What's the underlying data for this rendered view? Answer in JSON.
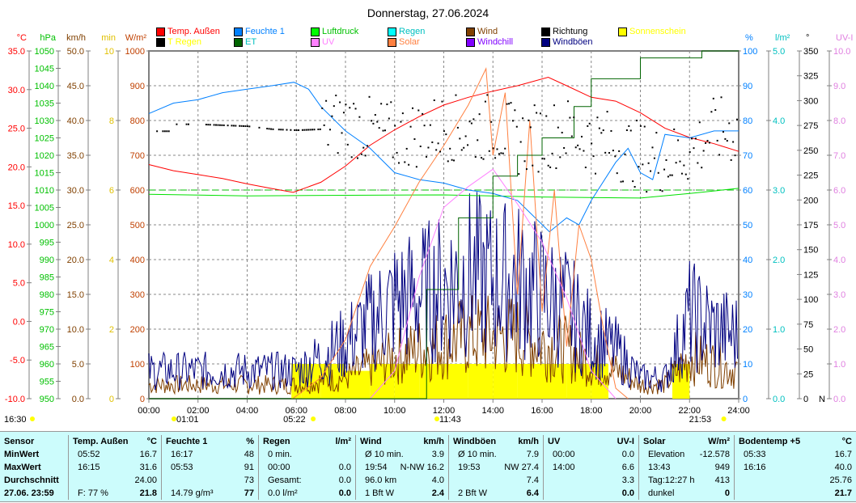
{
  "title": "Donnerstag, 27.06.2024",
  "legend": [
    {
      "label": "Temp. Außen",
      "color": "#ff0000"
    },
    {
      "label": "Feuchte 1",
      "color": "#0080ff"
    },
    {
      "label": "Luftdruck",
      "color": "#00ff00"
    },
    {
      "label": "Regen",
      "color": "#00ffff"
    },
    {
      "label": "Wind",
      "color": "#804000"
    },
    {
      "label": "Richtung",
      "color": "#000000"
    },
    {
      "label": "Sonnenschein",
      "color": "#ffff00"
    },
    {
      "label": "T Regen",
      "color": "#000000"
    },
    {
      "label": "ET",
      "color": "#006400"
    },
    {
      "label": "UV",
      "color": "#ff80ff"
    },
    {
      "label": "Solar",
      "color": "#ff8040"
    },
    {
      "label": "Windchill",
      "color": "#8000ff"
    },
    {
      "label": "Windböen",
      "color": "#000080"
    }
  ],
  "legend_text_colors": [
    "#ff0000",
    "#0080ff",
    "#00c000",
    "#00c0c0",
    "#804000",
    "#000000",
    "#ffff00",
    "#ffff00",
    "#00c0c0",
    "#ff80ff",
    "#ff8040",
    "#8000ff",
    "#000080"
  ],
  "chart_data": {
    "type": "line",
    "title": "Donnerstag, 27.06.2024",
    "x_ticks": [
      "00:00",
      "02:00",
      "04:00",
      "06:00",
      "08:00",
      "10:00",
      "12:00",
      "14:00",
      "16:00",
      "18:00",
      "20:00",
      "22:00",
      "24:00"
    ],
    "axes": [
      {
        "unit": "°C",
        "min": -10,
        "max": 35,
        "step": 5,
        "dec": 1,
        "color": "#ff0000",
        "side": "left"
      },
      {
        "unit": "hPa",
        "min": 950,
        "max": 1050,
        "step": 5,
        "dec": 0,
        "color": "#00c000",
        "side": "left"
      },
      {
        "unit": "km/h",
        "min": 0,
        "max": 50,
        "step": 5,
        "dec": 1,
        "color": "#804000",
        "side": "left"
      },
      {
        "unit": "min",
        "min": 0,
        "max": 10,
        "step": 2,
        "dec": 0,
        "color": "#e0c000",
        "side": "left"
      },
      {
        "unit": "W/m²",
        "min": 0,
        "max": 1000,
        "step": 100,
        "dec": 0,
        "color": "#c04000",
        "side": "left"
      },
      {
        "unit": "%",
        "min": 0,
        "max": 100,
        "step": 10,
        "dec": 0,
        "color": "#0080ff",
        "side": "right"
      },
      {
        "unit": "l/m²",
        "min": 0,
        "max": 5,
        "step": 1,
        "dec": 1,
        "color": "#00c0c0",
        "side": "right"
      },
      {
        "unit": "°",
        "min": 0,
        "max": 350,
        "step": 25,
        "dec": 0,
        "color": "#000000",
        "side": "right"
      },
      {
        "unit": "UV-I",
        "min": 0,
        "max": 10,
        "step": 1,
        "dec": 1,
        "color": "#e080e0",
        "side": "right"
      }
    ],
    "series": [
      {
        "name": "Temp. Außen",
        "axis": 0,
        "color": "#ff0000",
        "x": [
          0,
          1,
          2,
          3,
          4,
          5,
          5.87,
          7,
          8,
          9,
          10,
          11,
          12,
          13,
          14,
          15,
          16.25,
          17,
          18,
          19,
          20,
          21,
          22,
          23,
          24
        ],
        "y": [
          20.3,
          19.5,
          19,
          18.5,
          17.8,
          17.2,
          16.7,
          18,
          20.1,
          22.8,
          24.8,
          26.5,
          28,
          29,
          29.8,
          30.5,
          31.6,
          30.5,
          29,
          28.5,
          27,
          25,
          23.8,
          23,
          22
        ]
      },
      {
        "name": "Feuchte 1",
        "axis": 5,
        "color": "#0080ff",
        "x": [
          0,
          1,
          2,
          3,
          4,
          5,
          5.9,
          6.5,
          7,
          8,
          9,
          10,
          11,
          12,
          13,
          14,
          15,
          16.3,
          17,
          17.5,
          18,
          19,
          19.5,
          20,
          20.5,
          21,
          22,
          23,
          24
        ],
        "y": [
          82,
          85,
          86,
          88,
          89,
          90,
          91,
          89,
          84,
          77,
          72,
          65,
          63,
          62,
          60,
          59,
          57,
          48,
          52,
          50,
          57,
          68,
          72,
          65,
          63,
          76,
          75,
          77,
          77
        ]
      },
      {
        "name": "Luftdruck",
        "axis": 1,
        "color": "#00e000",
        "x": [
          0,
          4,
          8,
          12,
          16,
          20,
          22,
          24
        ],
        "y": [
          1008.8,
          1008.3,
          1008.5,
          1008.6,
          1008,
          1007.7,
          1009,
          1010.5
        ]
      },
      {
        "name": "Solar",
        "axis": 4,
        "color": "#ff8040",
        "x": [
          5.85,
          7,
          8,
          9,
          10,
          11,
          12,
          13,
          13.72,
          14,
          14.5,
          15,
          15.5,
          16,
          16.5,
          17,
          17.5,
          18,
          18.5,
          19,
          19.5
        ],
        "y": [
          0,
          60,
          170,
          380,
          495,
          623,
          728,
          845,
          949,
          700,
          880,
          300,
          800,
          250,
          600,
          150,
          500,
          400,
          200,
          30,
          0
        ]
      },
      {
        "name": "UV",
        "axis": 8,
        "color": "#ff80ff",
        "x": [
          9,
          10,
          11,
          12,
          13,
          14,
          15,
          16,
          17,
          18,
          19
        ],
        "y": [
          0,
          0.8,
          3.5,
          5.5,
          6.1,
          6.6,
          5.6,
          4.5,
          2.9,
          0.8,
          0
        ]
      },
      {
        "name": "ET",
        "axis": 6,
        "color": "#006400",
        "step": true,
        "x": [
          0,
          11.3,
          12.6,
          14,
          15,
          16,
          17.3,
          18,
          20,
          22.5,
          24
        ],
        "y": [
          0,
          1.57,
          2.6,
          3.2,
          3.5,
          3.75,
          4.2,
          4.6,
          4.9,
          5,
          5
        ]
      },
      {
        "name": "Sonnenschein",
        "axis": 3,
        "color": "#ffff00",
        "bars": true,
        "x": [
          5.8,
          6.2,
          7,
          8,
          9,
          10,
          11,
          12,
          13,
          14,
          15,
          16,
          17,
          18,
          18.7,
          21.3
        ],
        "y": [
          1,
          1,
          1,
          0.8,
          1,
          1,
          1,
          1,
          1,
          1,
          1,
          1,
          1,
          1,
          0,
          1
        ]
      },
      {
        "name": "Wind",
        "axis": 2,
        "color": "#804000",
        "noisy": true,
        "x": [
          0,
          2,
          4,
          6,
          8,
          10,
          12,
          13,
          14,
          15,
          16,
          17,
          18,
          19,
          20,
          21,
          22,
          23,
          24
        ],
        "y": [
          2,
          2,
          2,
          2,
          3,
          6,
          8,
          9,
          9,
          9,
          8,
          7,
          5,
          4,
          2,
          2,
          6,
          5,
          4
        ]
      },
      {
        "name": "Windböen",
        "axis": 2,
        "color": "#000080",
        "noisy": true,
        "x": [
          0,
          2,
          4,
          6,
          8,
          10,
          12,
          13,
          14,
          15,
          16,
          17,
          18,
          19,
          20,
          21,
          22,
          23,
          24
        ],
        "y": [
          4,
          4,
          4,
          4,
          8,
          14,
          16,
          18,
          17,
          17,
          15,
          13,
          9,
          7,
          3,
          3,
          12,
          10,
          9
        ]
      },
      {
        "name": "Richtung",
        "axis": 7,
        "color": "#000000",
        "dots": true,
        "x": [
          1,
          2,
          3,
          4,
          5,
          6,
          7,
          8,
          9,
          10,
          11,
          12,
          13,
          14,
          15,
          16,
          17,
          18,
          19,
          20,
          21,
          22,
          23
        ],
        "y": [
          277,
          277,
          276,
          275,
          272,
          271,
          272,
          280,
          270,
          265,
          268,
          275,
          270,
          275,
          260,
          265,
          270,
          262,
          255,
          245,
          240,
          250,
          270
        ]
      }
    ],
    "reference_line": {
      "axis": 0,
      "value": 17,
      "color": "#00c000"
    }
  },
  "time_markers": [
    {
      "label": "16:30",
      "x": -2
    },
    {
      "label": "01:01",
      "x": 1.02
    },
    {
      "label": "05:22",
      "x": 5.37
    },
    {
      "label": "11:43",
      "x": 11.72
    },
    {
      "label": "21:53",
      "x": 21.88
    }
  ],
  "dir_bottom_label": "N",
  "table": [
    {
      "head": [
        "Sensor",
        ""
      ],
      "rows": [
        [
          "MinWert",
          ""
        ],
        [
          "MaxWert",
          ""
        ],
        [
          "Durchschnitt",
          ""
        ],
        [
          "27.06. 23:59",
          ""
        ]
      ],
      "bold": true
    },
    {
      "head": [
        "Temp. Außen",
        "°C"
      ],
      "rows": [
        [
          "05:52",
          "16.7"
        ],
        [
          "16:15",
          "31.6"
        ],
        [
          "",
          "24.00"
        ],
        [
          "F: 77 %",
          "21.8"
        ]
      ]
    },
    {
      "head": [
        "Feuchte 1",
        "%"
      ],
      "rows": [
        [
          "16:17",
          "48"
        ],
        [
          "05:53",
          "91"
        ],
        [
          "",
          "73"
        ],
        [
          "14.79 g/m³",
          "77"
        ]
      ]
    },
    {
      "head": [
        "Regen",
        "l/m²"
      ],
      "rows": [
        [
          "0 min.",
          ""
        ],
        [
          "00:00",
          "0.0"
        ],
        [
          "Gesamt:",
          "0.0"
        ],
        [
          "0.0 l/m²",
          "0.0"
        ]
      ]
    },
    {
      "head": [
        "Wind",
        "km/h"
      ],
      "rows": [
        [
          "Ø 10 min.",
          "3.9"
        ],
        [
          "19:54",
          "N-NW 16.2"
        ],
        [
          "96.0 km",
          "4.0"
        ],
        [
          "1 Bft W",
          "2.4"
        ]
      ]
    },
    {
      "head": [
        "Windböen",
        "km/h"
      ],
      "rows": [
        [
          "Ø 10 min.",
          "7.9"
        ],
        [
          "19:53",
          "NW 27.4"
        ],
        [
          "",
          "7.4"
        ],
        [
          "2 Bft W",
          "6.4"
        ]
      ]
    },
    {
      "head": [
        "UV",
        "UV-I"
      ],
      "rows": [
        [
          "00:00",
          "0.0"
        ],
        [
          "14:00",
          "6.6"
        ],
        [
          "",
          "3.3"
        ],
        [
          "",
          "0.0"
        ]
      ]
    },
    {
      "head": [
        "Solar",
        "W/m²"
      ],
      "rows": [
        [
          "Elevation",
          "-12.578"
        ],
        [
          "13:43",
          "949"
        ],
        [
          "Tag:12:27 h",
          "413"
        ],
        [
          "dunkel",
          "0"
        ]
      ]
    },
    {
      "head": [
        "Bodentemp +5",
        "°C"
      ],
      "rows": [
        [
          "05:33",
          "16.7"
        ],
        [
          "16:16",
          "40.0"
        ],
        [
          "",
          "25.76"
        ],
        [
          "",
          "21.7"
        ]
      ]
    }
  ]
}
